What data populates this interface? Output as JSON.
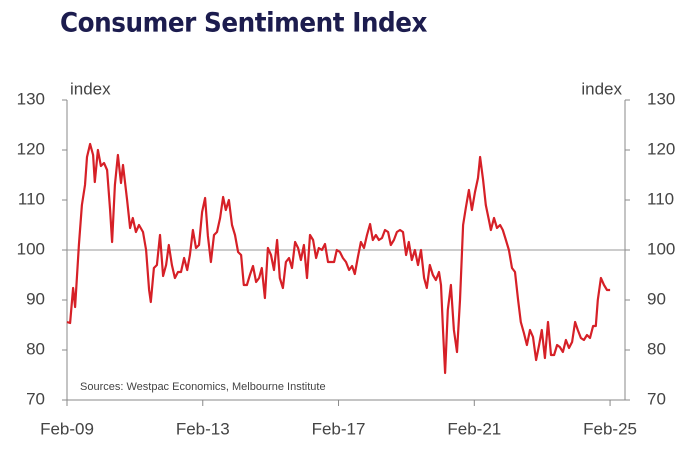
{
  "chart_data": {
    "type": "line",
    "title": "Consumer Sentiment Index",
    "source": "Sources: Westpac Economics, Melbourne Institute",
    "y_label": "index",
    "y2_label": "index",
    "xlim": [
      2009.08,
      2025.52
    ],
    "xticks": [
      {
        "value": 2009.08,
        "label": "Feb-09"
      },
      {
        "value": 2013.08,
        "label": "Feb-13"
      },
      {
        "value": 2017.08,
        "label": "Feb-17"
      },
      {
        "value": 2021.08,
        "label": "Feb-21"
      },
      {
        "value": 2025.08,
        "label": "Feb-25"
      }
    ],
    "ylim": [
      70,
      130
    ],
    "yticks": [
      70,
      80,
      90,
      100,
      110,
      120,
      130
    ],
    "y2lim": [
      70,
      130
    ],
    "y2ticks": [
      70,
      80,
      90,
      100,
      110,
      120,
      130
    ],
    "reference_line": 100,
    "series": [
      {
        "name": "Consumer Sentiment Index",
        "color": "#d62027",
        "x": [
          2009.08,
          2009.17,
          2009.26,
          2009.32,
          2009.43,
          2009.52,
          2009.61,
          2009.67,
          2009.76,
          2009.85,
          2009.9,
          2009.99,
          2010.08,
          2010.17,
          2010.26,
          2010.35,
          2010.41,
          2010.49,
          2010.58,
          2010.67,
          2010.73,
          2010.85,
          2010.94,
          2011.02,
          2011.11,
          2011.2,
          2011.32,
          2011.41,
          2011.5,
          2011.55,
          2011.64,
          2011.73,
          2011.82,
          2011.91,
          2012.0,
          2012.08,
          2012.17,
          2012.26,
          2012.35,
          2012.44,
          2012.53,
          2012.62,
          2012.7,
          2012.79,
          2012.88,
          2012.97,
          2013.06,
          2013.15,
          2013.23,
          2013.32,
          2013.41,
          2013.5,
          2013.59,
          2013.68,
          2013.76,
          2013.85,
          2013.94,
          2014.03,
          2014.12,
          2014.21,
          2014.29,
          2014.38,
          2014.47,
          2014.56,
          2014.65,
          2014.74,
          2014.82,
          2014.91,
          2015.0,
          2015.09,
          2015.18,
          2015.27,
          2015.35,
          2015.44,
          2015.53,
          2015.62,
          2015.71,
          2015.8,
          2015.89,
          2015.97,
          2016.06,
          2016.15,
          2016.24,
          2016.33,
          2016.42,
          2016.5,
          2016.59,
          2016.68,
          2016.77,
          2016.86,
          2016.95,
          2017.03,
          2017.12,
          2017.21,
          2017.3,
          2017.39,
          2017.48,
          2017.56,
          2017.65,
          2017.74,
          2017.83,
          2017.92,
          2018.01,
          2018.09,
          2018.18,
          2018.27,
          2018.36,
          2018.45,
          2018.54,
          2018.62,
          2018.71,
          2018.8,
          2018.89,
          2018.98,
          2019.07,
          2019.15,
          2019.24,
          2019.33,
          2019.42,
          2019.51,
          2019.6,
          2019.68,
          2019.77,
          2019.86,
          2019.95,
          2020.04,
          2020.1,
          2020.16,
          2020.22,
          2020.3,
          2020.39,
          2020.48,
          2020.57,
          2020.66,
          2020.75,
          2020.83,
          2020.92,
          2021.01,
          2021.1,
          2021.19,
          2021.25,
          2021.34,
          2021.42,
          2021.51,
          2021.57,
          2021.66,
          2021.75,
          2021.84,
          2021.92,
          2022.01,
          2022.1,
          2022.19,
          2022.28,
          2022.37,
          2022.45,
          2022.54,
          2022.63,
          2022.72,
          2022.81,
          2022.9,
          2022.99,
          2023.07,
          2023.16,
          2023.25,
          2023.34,
          2023.43,
          2023.52,
          2023.6,
          2023.69,
          2023.78,
          2023.87,
          2023.96,
          2024.05,
          2024.13,
          2024.22,
          2024.31,
          2024.4,
          2024.49,
          2024.58,
          2024.66,
          2024.72,
          2024.81,
          2024.9,
          2024.99,
          2025.08
        ],
        "values": [
          85.6,
          85.4,
          92.4,
          88.6,
          101,
          109,
          113,
          118.6,
          121.2,
          119,
          113.6,
          120,
          116.8,
          117.4,
          116,
          108,
          101.6,
          113,
          119,
          113.4,
          117,
          110,
          104.4,
          106.4,
          103.6,
          105,
          103.6,
          100,
          92,
          89.6,
          96.4,
          97,
          103,
          94.8,
          97,
          101,
          97,
          94.4,
          95.6,
          95.6,
          98.4,
          96,
          99,
          104,
          100.4,
          101,
          107.6,
          110.4,
          102.8,
          97.6,
          103,
          103.6,
          106.4,
          110.6,
          108,
          110,
          105,
          103,
          99.6,
          99,
          93,
          93,
          95,
          96.8,
          93.6,
          94.4,
          96.4,
          90.4,
          100.4,
          99,
          96,
          102,
          94.4,
          92.4,
          97.6,
          98.4,
          96.4,
          101.6,
          100.4,
          98,
          101,
          94.4,
          103,
          102,
          98.4,
          100.4,
          100,
          101.2,
          97.6,
          97.6,
          97.6,
          100,
          99.6,
          98.4,
          97.6,
          96,
          96.8,
          95.2,
          98.6,
          101.6,
          100.4,
          103,
          105.2,
          102,
          103,
          102,
          102.4,
          104,
          103.6,
          101,
          102,
          103.6,
          104,
          103.6,
          99,
          101.6,
          98,
          100,
          97,
          100,
          94.4,
          92.4,
          97,
          95,
          94,
          95.6,
          93,
          83.6,
          75.4,
          88,
          93,
          84,
          79.6,
          90,
          105,
          108.4,
          112,
          108,
          111.6,
          114.4,
          118.6,
          114,
          109,
          106,
          104,
          106.4,
          104.4,
          105,
          104,
          102,
          100,
          96.4,
          95.6,
          90,
          85.6,
          83.4,
          81,
          84,
          82.6,
          78,
          81,
          84,
          78.4,
          85.6,
          79,
          79,
          81,
          80.6,
          79.6,
          82,
          80.4,
          81.6,
          85.6,
          84,
          82.4,
          82,
          83,
          82.4,
          84.8,
          84.8,
          90,
          94.4,
          93,
          92,
          92
        ]
      }
    ]
  }
}
